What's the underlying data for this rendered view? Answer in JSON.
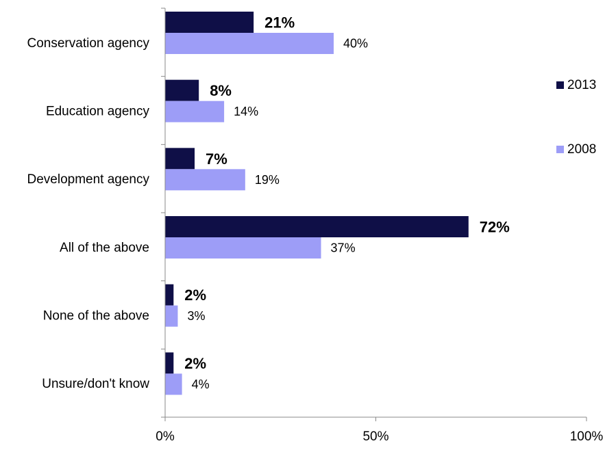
{
  "chart_data": {
    "type": "bar",
    "orientation": "horizontal",
    "categories": [
      "Conservation agency",
      "Education agency",
      "Development agency",
      "All of the above",
      "None of the above",
      "Unsure/don't know"
    ],
    "series": [
      {
        "name": "2013",
        "values": [
          21,
          8,
          7,
          72,
          2,
          2
        ],
        "labels": [
          "21%",
          "8%",
          "7%",
          "72%",
          "2%",
          "2%"
        ],
        "color": "#0f0f47"
      },
      {
        "name": "2008",
        "values": [
          40,
          14,
          19,
          37,
          3,
          4
        ],
        "labels": [
          "40%",
          "14%",
          "19%",
          "37%",
          "3%",
          "4%"
        ],
        "color": "#9d9df7"
      }
    ],
    "xlim": [
      0,
      100
    ],
    "x_ticks": [
      "0%",
      "50%",
      "100%"
    ],
    "legend_position": "right",
    "grid": false
  }
}
